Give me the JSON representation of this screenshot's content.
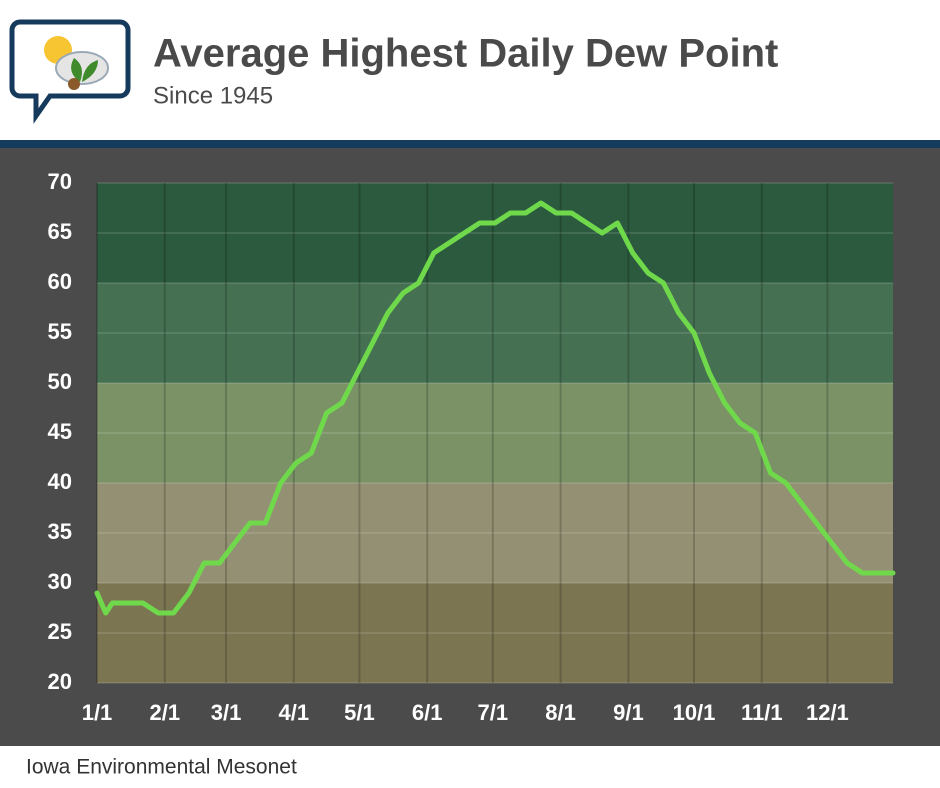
{
  "chart_data": {
    "type": "line",
    "title": "Average Highest Daily Dew Point",
    "subtitle": "Since 1945",
    "source": "Iowa Environmental Mesonet",
    "x": [
      0,
      4,
      7,
      14,
      21,
      28,
      35,
      42,
      49,
      56,
      63,
      70,
      77,
      84,
      91,
      98,
      105,
      112,
      119,
      126,
      133,
      140,
      147,
      154,
      161,
      168,
      175,
      182,
      189,
      196,
      203,
      210,
      217,
      224,
      231,
      238,
      245,
      252,
      259,
      266,
      273,
      280,
      287,
      294,
      301,
      308,
      315,
      322,
      329,
      336,
      343,
      350,
      357,
      364
    ],
    "series": [
      {
        "color": "#6fd94b",
        "values": [
          29,
          27,
          28,
          28,
          28,
          27,
          27,
          29,
          32,
          32,
          34,
          36,
          36,
          40,
          42,
          43,
          47,
          48,
          51,
          54,
          57,
          59,
          60,
          63,
          64,
          65,
          66,
          66,
          67,
          67,
          68,
          67,
          67,
          66,
          65,
          66,
          63,
          61,
          60,
          57,
          55,
          51,
          48,
          46,
          45,
          41,
          40,
          38,
          36,
          34,
          32,
          31,
          31,
          31
        ]
      }
    ],
    "xlim": [
      0,
      364
    ],
    "xticks": [
      {
        "value": 0,
        "label": "1/1"
      },
      {
        "value": 31,
        "label": "2/1"
      },
      {
        "value": 59,
        "label": "3/1"
      },
      {
        "value": 90,
        "label": "4/1"
      },
      {
        "value": 120,
        "label": "5/1"
      },
      {
        "value": 151,
        "label": "6/1"
      },
      {
        "value": 181,
        "label": "7/1"
      },
      {
        "value": 212,
        "label": "8/1"
      },
      {
        "value": 243,
        "label": "9/1"
      },
      {
        "value": 273,
        "label": "10/1"
      },
      {
        "value": 304,
        "label": "11/1"
      },
      {
        "value": 334,
        "label": "12/1"
      }
    ],
    "ylim": [
      20,
      70
    ],
    "yticks": [
      20,
      25,
      30,
      35,
      40,
      45,
      50,
      55,
      60,
      65,
      70
    ],
    "bands": [
      {
        "from": 20,
        "to": 30,
        "color": "#7b7552"
      },
      {
        "from": 30,
        "to": 40,
        "color": "#949073"
      },
      {
        "from": 40,
        "to": 50,
        "color": "#7b9267"
      },
      {
        "from": 50,
        "to": 60,
        "color": "#457052"
      },
      {
        "from": 60,
        "to": 70,
        "color": "#2c5a3f"
      }
    ],
    "grid": true
  }
}
